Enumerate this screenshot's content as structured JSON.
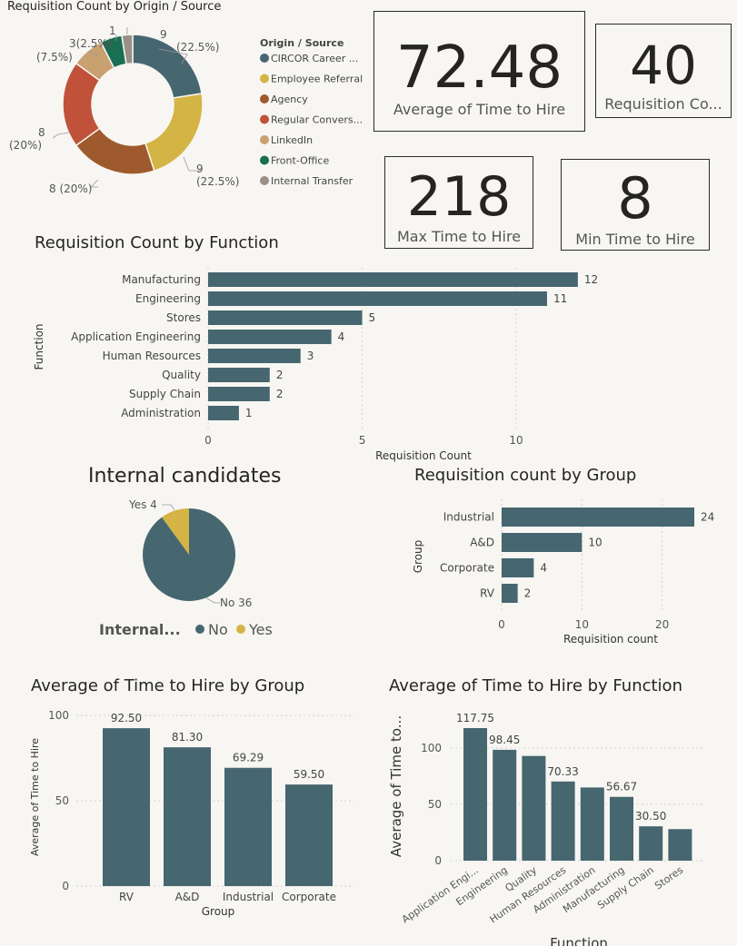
{
  "donut": {
    "title": "Requisition Count by Origin / Source",
    "legend_title": "Origin / Source",
    "legend": [
      {
        "label": "CIRCOR Career ...",
        "color": "#466670"
      },
      {
        "label": "Employee Referral",
        "color": "#d4b444"
      },
      {
        "label": "Agency",
        "color": "#9e5a2c"
      },
      {
        "label": "Regular Convers...",
        "color": "#c0523a"
      },
      {
        "label": "LinkedIn",
        "color": "#c9a070"
      },
      {
        "label": "Front-Office",
        "color": "#1a6e52"
      },
      {
        "label": "Internal Transfer",
        "color": "#999087"
      }
    ],
    "labels": {
      "circor_count": "9",
      "circor_pct": "(22.5%)",
      "employee_count": "9",
      "employee_pct": "(22.5%)",
      "agency": "8 (20%)",
      "regular_count": "8",
      "regular_pct": "(20%)",
      "linkedin_top": "3(2.5%)",
      "linkedin_pct": "(7.5%)",
      "front": "1"
    }
  },
  "kpis": {
    "avg_value": "72.48",
    "avg_label": "Average of Time to Hire",
    "req_value": "40",
    "req_label": "Requisition Co...",
    "max_value": "218",
    "max_label": "Max Time to Hire",
    "min_value": "8",
    "min_label": "Min Time to Hire"
  },
  "func_chart_title": "Requisition Count by Function",
  "func_axis": {
    "ylabel": "Function",
    "xlabel": "Requisition Count",
    "ticks": [
      "0",
      "5",
      "10"
    ]
  },
  "internal": {
    "title": "Internal candidates",
    "yes_label": "Yes 4",
    "no_label": "No 36",
    "legend_title": "Internal...",
    "legend_no": "No",
    "legend_yes": "Yes"
  },
  "group_chart_title": "Requisition count by Group",
  "group_axis": {
    "ylabel": "Group",
    "xlabel": "Requisition count",
    "ticks": [
      "0",
      "10",
      "20"
    ]
  },
  "avg_group_title": "Average of Time to Hire by Group",
  "avg_group_axis": {
    "ylabel": "Average of Time to Hire",
    "xlabel": "Group",
    "ticks": [
      "0",
      "50",
      "100"
    ]
  },
  "avg_func_title": "Average of Time to Hire by Function",
  "avg_func_axis": {
    "ylabel": "Average of Time to...",
    "xlabel": "Function",
    "ticks": [
      "0",
      "50",
      "100"
    ]
  },
  "colors": {
    "bar": "#466670",
    "yes": "#d4b444",
    "grid": "#d6d3cc"
  },
  "chart_data": [
    {
      "type": "pie",
      "title": "Requisition Count by Origin / Source",
      "categories": [
        "CIRCOR Career ...",
        "Employee Referral",
        "Agency",
        "Regular Convers...",
        "LinkedIn",
        "Front-Office",
        "Internal Transfer"
      ],
      "values": [
        9,
        9,
        8,
        8,
        3,
        2,
        1
      ]
    },
    {
      "type": "bar",
      "title": "Requisition Count by Function",
      "categories": [
        "Manufacturing",
        "Engineering",
        "Stores",
        "Application Engineering",
        "Human Resources",
        "Quality",
        "Supply Chain",
        "Administration"
      ],
      "values": [
        12,
        11,
        5,
        4,
        3,
        2,
        2,
        1
      ],
      "xlabel": "Requisition Count",
      "ylabel": "Function",
      "xlim": [
        0,
        12.8
      ]
    },
    {
      "type": "pie",
      "title": "Internal candidates",
      "categories": [
        "No",
        "Yes"
      ],
      "values": [
        36,
        4
      ]
    },
    {
      "type": "bar",
      "title": "Requisition count by Group",
      "categories": [
        "Industrial",
        "A&D",
        "Corporate",
        "RV"
      ],
      "values": [
        24,
        10,
        4,
        2
      ],
      "xlabel": "Requisition count",
      "ylabel": "Group",
      "xlim": [
        0,
        24
      ]
    },
    {
      "type": "bar",
      "title": "Average of Time to Hire by Group",
      "categories": [
        "RV",
        "A&D",
        "Industrial",
        "Corporate"
      ],
      "values": [
        92.5,
        81.3,
        69.29,
        59.5
      ],
      "value_labels": [
        "92.50",
        "81.30",
        "69.29",
        "59.50"
      ],
      "xlabel": "Group",
      "ylabel": "Average of Time to Hire",
      "ylim": [
        0,
        100
      ]
    },
    {
      "type": "bar",
      "title": "Average of Time to Hire by Function",
      "categories": [
        "Application Engi...",
        "Engineering",
        "Quality",
        "Human Resources",
        "Administration",
        "Manufacturing",
        "Supply Chain",
        "Stores"
      ],
      "values": [
        117.75,
        98.45,
        93,
        70.33,
        65,
        56.67,
        30.5,
        28
      ],
      "value_labels": [
        "117.75",
        "98.45",
        "",
        "70.33",
        "",
        "56.67",
        "30.50",
        ""
      ],
      "xlabel": "Function",
      "ylabel": "Average of Time to...",
      "ylim": [
        0,
        100
      ]
    }
  ]
}
